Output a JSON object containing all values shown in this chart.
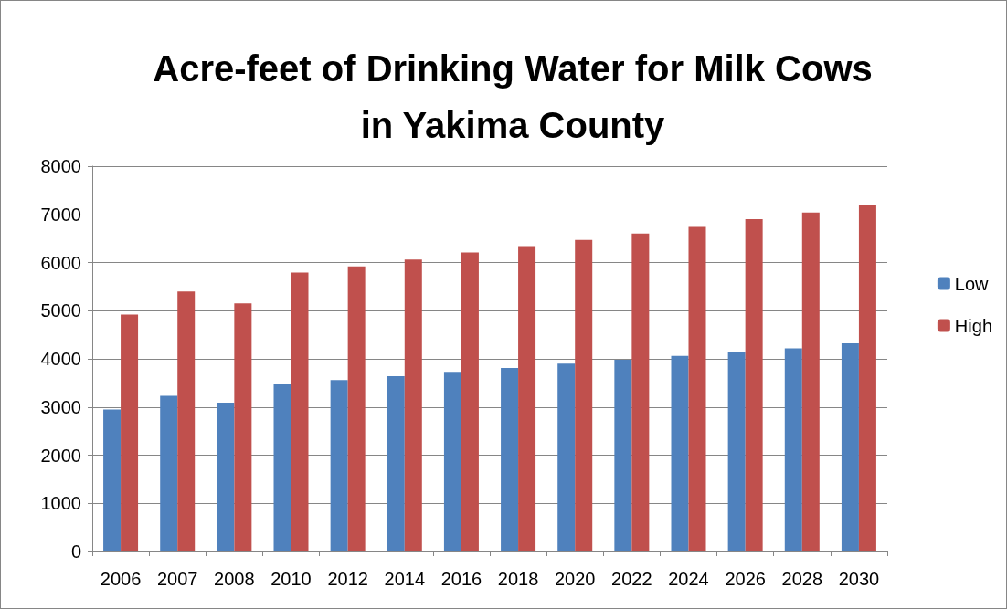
{
  "chart_data": {
    "type": "bar",
    "title": "Acre-feet of Drinking Water for Milk Cows\nin Yakima County",
    "categories": [
      "2006",
      "2007",
      "2008",
      "2010",
      "2012",
      "2014",
      "2016",
      "2018",
      "2020",
      "2022",
      "2024",
      "2026",
      "2028",
      "2030"
    ],
    "series": [
      {
        "name": "Low",
        "color": "#4f81bd",
        "values": [
          2950,
          3230,
          3090,
          3470,
          3560,
          3640,
          3730,
          3810,
          3900,
          3980,
          4060,
          4150,
          4220,
          4320
        ]
      },
      {
        "name": "High",
        "color": "#c0504d",
        "values": [
          4920,
          5400,
          5150,
          5790,
          5920,
          6060,
          6210,
          6340,
          6470,
          6600,
          6740,
          6900,
          7040,
          7190
        ]
      }
    ],
    "ylim": [
      0,
      8000
    ],
    "yticks": [
      0,
      1000,
      2000,
      3000,
      4000,
      5000,
      6000,
      7000,
      8000
    ],
    "grid": "y",
    "legend": "right"
  }
}
